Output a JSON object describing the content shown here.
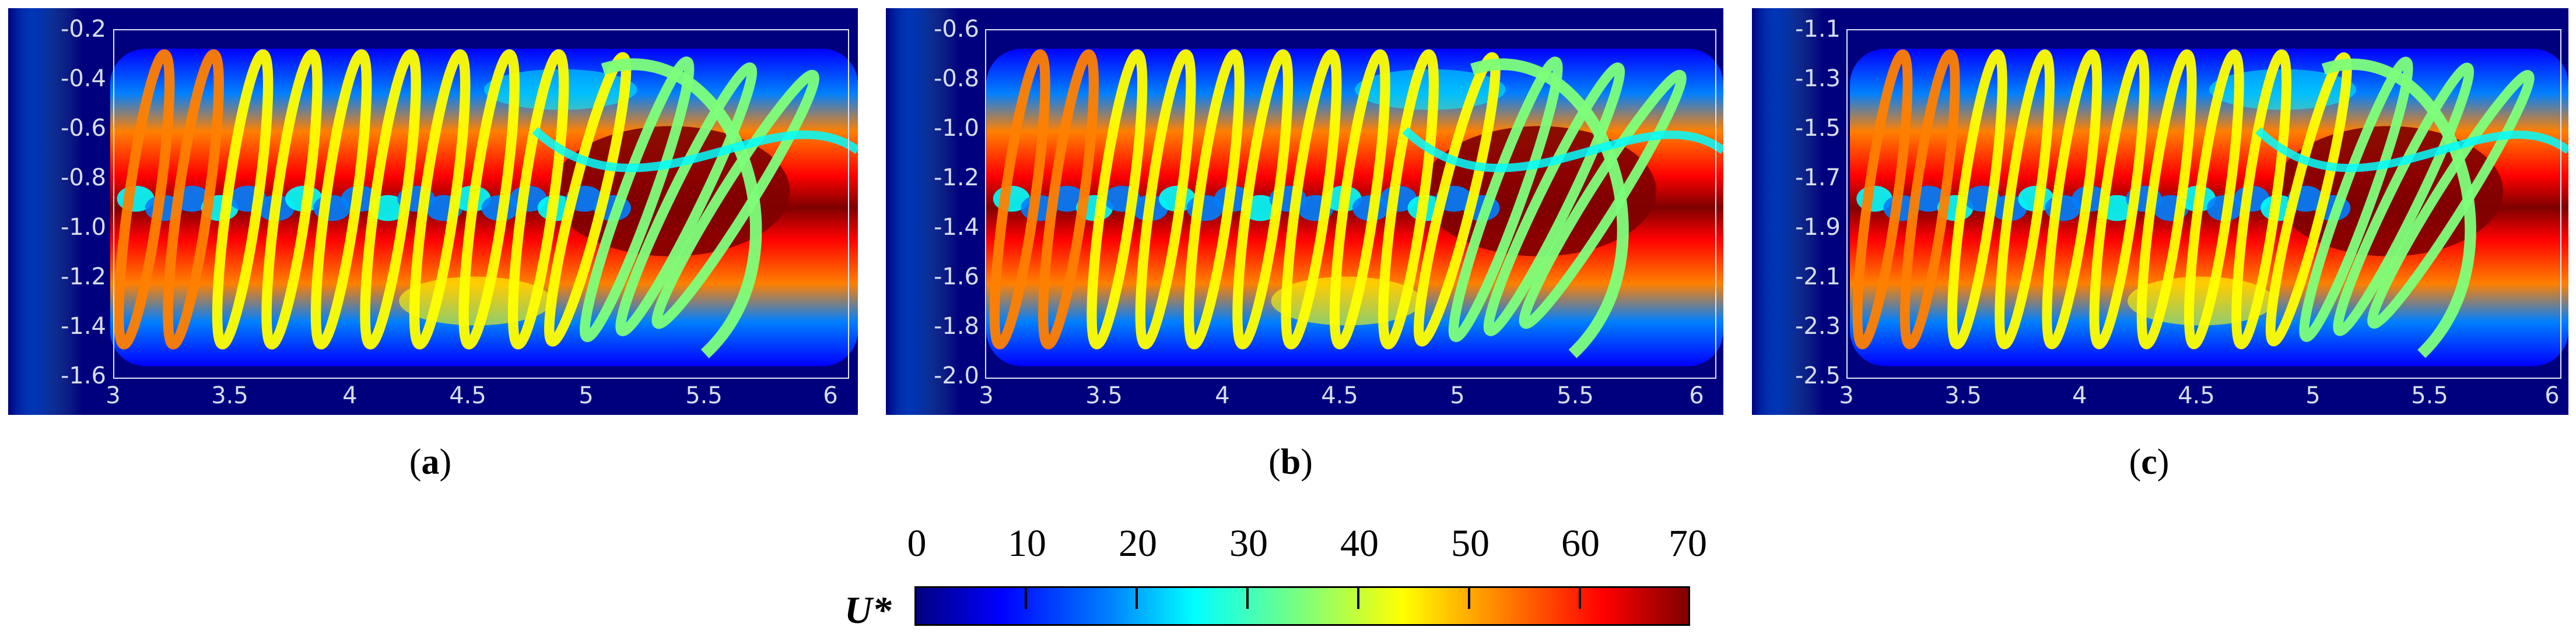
{
  "panels": [
    {
      "id": "a",
      "caption_letter": "a",
      "yticks": [
        "-0.2",
        "-0.4",
        "-0.6",
        "-0.8",
        "-1.0",
        "-1.2",
        "-1.4",
        "-1.6"
      ],
      "xticks": [
        "3",
        "3.5",
        "4",
        "4.5",
        "5",
        "5.5",
        "6"
      ]
    },
    {
      "id": "b",
      "caption_letter": "b",
      "yticks": [
        "-0.6",
        "-0.8",
        "-1.0",
        "-1.2",
        "-1.4",
        "-1.6",
        "-1.8",
        "-2.0"
      ],
      "xticks": [
        "3",
        "3.5",
        "4",
        "4.5",
        "5",
        "5.5",
        "6"
      ]
    },
    {
      "id": "c",
      "caption_letter": "c",
      "yticks": [
        "-1.1",
        "-1.3",
        "-1.5",
        "-1.7",
        "-1.9",
        "-2.1",
        "-2.3",
        "-2.5"
      ],
      "xticks": [
        "3",
        "3.5",
        "4",
        "4.5",
        "5",
        "5.5",
        "6"
      ]
    }
  ],
  "colorbar": {
    "title": "U*",
    "ticks": [
      "0",
      "10",
      "20",
      "30",
      "40",
      "50",
      "60",
      "70"
    ],
    "colors": [
      "#00007f",
      "#0000ff",
      "#0080ff",
      "#00ffff",
      "#7dff7a",
      "#ffff00",
      "#ff8000",
      "#ff0000",
      "#7f0000"
    ]
  }
}
